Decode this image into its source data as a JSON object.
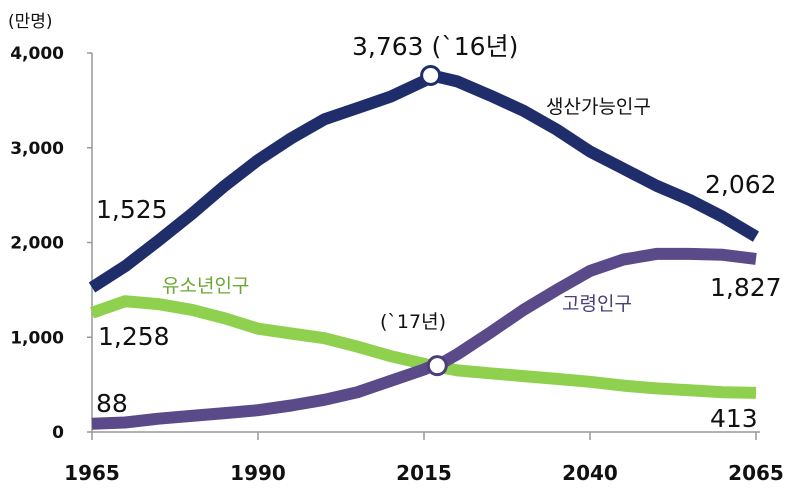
{
  "chart_data": {
    "type": "line",
    "unit_label": "(만명)",
    "xlim": [
      1965,
      2065
    ],
    "ylim": [
      0,
      4000
    ],
    "yticks": [
      0,
      1000,
      2000,
      3000,
      4000
    ],
    "ytick_labels": [
      "0",
      "1,000",
      "2,000",
      "3,000",
      "4,000"
    ],
    "xticks": [
      1965,
      1990,
      2015,
      2040,
      2065
    ],
    "xtick_labels": [
      "1965",
      "1990",
      "2015",
      "2040",
      "2065"
    ],
    "grid": false,
    "x": [
      1965,
      1970,
      1975,
      1980,
      1985,
      1990,
      1995,
      2000,
      2005,
      2010,
      2015,
      2016,
      2017,
      2020,
      2025,
      2030,
      2035,
      2040,
      2045,
      2050,
      2055,
      2060,
      2065
    ],
    "series": [
      {
        "name": "생산가능인구",
        "color": "#1f2d6b",
        "values": [
          1525,
          1750,
          2020,
          2300,
          2600,
          2870,
          3100,
          3300,
          3420,
          3540,
          3704,
          3763,
          3750,
          3700,
          3550,
          3390,
          3190,
          2960,
          2780,
          2600,
          2450,
          2270,
          2062
        ]
      },
      {
        "name": "유소년인구",
        "color": "#8fd14f",
        "values": [
          1258,
          1380,
          1350,
          1290,
          1200,
          1090,
          1040,
          990,
          900,
          800,
          720,
          700,
          690,
          650,
          620,
          590,
          560,
          530,
          490,
          460,
          440,
          420,
          413
        ]
      },
      {
        "name": "고령인구",
        "color": "#5b4a8a",
        "values": [
          88,
          100,
          140,
          170,
          200,
          230,
          280,
          340,
          420,
          540,
          660,
          690,
          700,
          820,
          1050,
          1290,
          1500,
          1700,
          1820,
          1880,
          1880,
          1870,
          1827
        ]
      }
    ],
    "data_labels": {
      "working_start": "1,525",
      "working_end": "2,062",
      "working_peak": "3,763 (`16년)",
      "youth_start": "1,258",
      "youth_end": "413",
      "elderly_start": "88",
      "elderly_end": "1,827",
      "cross": "(`17년)"
    },
    "markers": [
      {
        "x": 2016,
        "y": 3763
      },
      {
        "x": 2017,
        "y": 700
      }
    ]
  }
}
